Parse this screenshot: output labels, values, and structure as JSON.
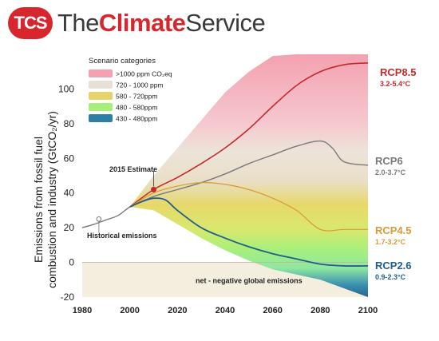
{
  "brand": {
    "badge": "TCS",
    "name_part1": "The",
    "name_part2": "Climate",
    "name_part3": "Service",
    "colors": {
      "red": "#d7262d",
      "gray": "#3a3a3a"
    }
  },
  "chart_data": {
    "type": "line",
    "ylabel_line1": "Emissions from fossil fuel",
    "ylabel_line2": "combustion and industry (GtCO₂/yr)",
    "xlim": [
      1980,
      2100
    ],
    "ylim": [
      -20,
      120
    ],
    "xticks": [
      1980,
      2000,
      2020,
      2040,
      2060,
      2080,
      2100
    ],
    "yticks": [
      -20,
      0,
      20,
      40,
      60,
      80,
      100
    ],
    "legend": {
      "title": "Scenario categories",
      "placement": "top-left",
      "entries": [
        {
          "label": ">1000 ppm CO₂eq",
          "color": "#f4a0b0"
        },
        {
          "label": "720 - 1000 ppm",
          "color": "#e6e0d6"
        },
        {
          "label": "580 - 720ppm",
          "color": "#e6d36a"
        },
        {
          "label": "480 - 580ppm",
          "color": "#a6f07a"
        },
        {
          "label": "430 - 480ppm",
          "color": "#2e7fa6"
        }
      ]
    },
    "historical": {
      "name": "Historical emissions",
      "x": [
        1980,
        1985,
        1990,
        1995,
        2000,
        2005,
        2010
      ],
      "y": [
        20,
        22,
        24.5,
        27,
        32,
        35,
        38
      ]
    },
    "estimate_2015": {
      "label": "2015 Estimate",
      "x": 2010,
      "y": 42
    },
    "series": [
      {
        "name": "RCP8.5",
        "range": "3.2-5.4°C",
        "color": "#c8282d",
        "x": [
          2000,
          2010,
          2020,
          2030,
          2040,
          2050,
          2060,
          2070,
          2080,
          2090,
          2100
        ],
        "y": [
          32,
          42,
          49,
          57,
          66,
          77,
          90,
          102,
          110,
          114,
          115
        ]
      },
      {
        "name": "RCP6",
        "range": "2.0-3.7°C",
        "color": "#7a7a7a",
        "x": [
          2000,
          2010,
          2020,
          2030,
          2040,
          2050,
          2060,
          2070,
          2080,
          2085,
          2090,
          2100
        ],
        "y": [
          32,
          38,
          42,
          46,
          51,
          57,
          62,
          67,
          70,
          66,
          58,
          56
        ]
      },
      {
        "name": "RCP4.5",
        "range": "1.7-3.2°C",
        "color": "#d89a36",
        "x": [
          2000,
          2010,
          2020,
          2030,
          2040,
          2050,
          2060,
          2070,
          2080,
          2090,
          2100
        ],
        "y": [
          32,
          40,
          44,
          46,
          45,
          42,
          37,
          30,
          19,
          19,
          19
        ]
      },
      {
        "name": "RCP2.6",
        "range": "0.9-2.3°C",
        "color": "#1f5f8b",
        "x": [
          2000,
          2005,
          2010,
          2015,
          2020,
          2030,
          2040,
          2050,
          2060,
          2070,
          2080,
          2090,
          2100
        ],
        "y": [
          32,
          35,
          37,
          36,
          30,
          20,
          14,
          9,
          5,
          2,
          -1,
          -2,
          -2
        ]
      }
    ],
    "net_negative_label": "net - negative global emissions"
  }
}
